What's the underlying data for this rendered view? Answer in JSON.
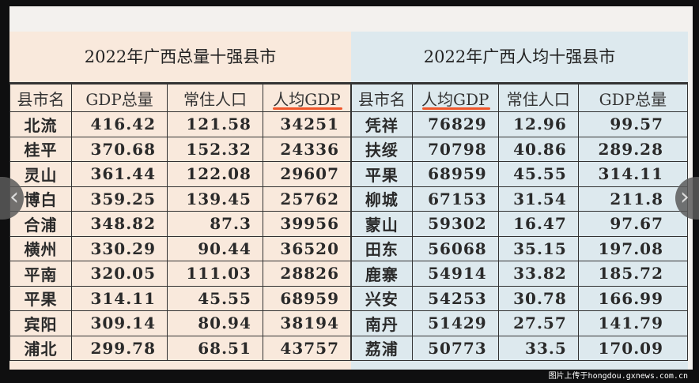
{
  "left_table": {
    "title": "2022年广西总量十强县市",
    "headers": [
      "县市名",
      "GDP总量",
      "常住人口",
      "人均GDP"
    ],
    "rows": [
      [
        "北流",
        "416.42",
        "121.58",
        "34251"
      ],
      [
        "桂平",
        "370.68",
        "152.32",
        "24336"
      ],
      [
        "灵山",
        "361.44",
        "122.08",
        "29607"
      ],
      [
        "博白",
        "359.25",
        "139.45",
        "25762"
      ],
      [
        "合浦",
        "348.82",
        "87.3",
        "39956"
      ],
      [
        "横州",
        "330.29",
        "90.44",
        "36520"
      ],
      [
        "平南",
        "320.05",
        "111.03",
        "28826"
      ],
      [
        "平果",
        "314.11",
        "45.55",
        "68959"
      ],
      [
        "宾阳",
        "309.14",
        "80.94",
        "38194"
      ],
      [
        "浦北",
        "299.78",
        "68.51",
        "43757"
      ]
    ]
  },
  "right_table": {
    "title": "2022年广西人均十强县市",
    "headers": [
      "县市名",
      "人均GDP",
      "常住人口",
      "GDP总量"
    ],
    "rows": [
      [
        "凭祥",
        "76829",
        "12.96",
        "99.57"
      ],
      [
        "扶绥",
        "70798",
        "40.86",
        "289.28"
      ],
      [
        "平果",
        "68959",
        "45.55",
        "314.11"
      ],
      [
        "柳城",
        "67153",
        "31.54",
        "211.8"
      ],
      [
        "蒙山",
        "59302",
        "16.47",
        "97.67"
      ],
      [
        "田东",
        "56068",
        "35.15",
        "197.08"
      ],
      [
        "鹿寨",
        "54914",
        "33.82",
        "185.72"
      ],
      [
        "兴安",
        "54253",
        "30.78",
        "166.99"
      ],
      [
        "南丹",
        "51429",
        "27.57",
        "141.79"
      ],
      [
        "荔浦",
        "50773",
        "33.5",
        "170.09"
      ]
    ]
  },
  "watermark": "图片上传于hongdou.gxnews.com.cn",
  "nav": {
    "prev_icon": "chevron-left-icon",
    "next_icon": "chevron-right-icon",
    "prev": "‹",
    "next": "›"
  },
  "colors": {
    "left_bg": "#f9e9dc",
    "right_bg": "#dde9ee",
    "underline": "#f0562a"
  }
}
